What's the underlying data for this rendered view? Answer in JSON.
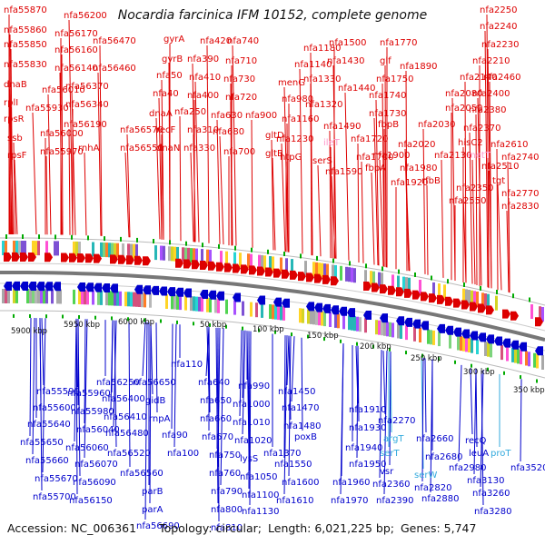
{
  "title": "Nocardia farcinica IFM 10152, complete genome",
  "footer": {
    "accession": "Accession: NC_006361",
    "topology": "Topology: circular;",
    "length": "Length: 6,021,225 bp;",
    "genes": "Genes: 5,747"
  },
  "colors": {
    "forward": "#dd0000",
    "reverse": "#0000cc",
    "reverse_rna": "#33aadd",
    "forward_rna": "#ff99cc",
    "ring": "#888888",
    "tick": "#00aa00"
  },
  "kbp_labels": [
    "5900 kbp",
    "5950 kbp",
    "6000 kbp",
    "50 kbp",
    "100 kbp",
    "150 kbp",
    "200 kbp",
    "250 kbp",
    "300 kbp",
    "350 kbp"
  ],
  "top_labels": [
    "nfa55870",
    "nfa55860",
    "nfa55850",
    "nfa55830",
    "dnaB",
    "rplI",
    "rpsR",
    "ssb",
    "rpsF",
    "nfa56200",
    "nfa56170",
    "nfa56160",
    "nfa56140",
    "nfa56010",
    "nfa55930",
    "nfa56000",
    "nfa55970",
    "nfa56470",
    "nfa56460",
    "nfa56370",
    "nfa56340",
    "nfa56190",
    "rnhA",
    "nfa56570",
    "nfa56550",
    "gyrA",
    "gyrB",
    "nfa50",
    "nfa40",
    "dnaA",
    "recF",
    "dnaN",
    "nfa420",
    "nfa390",
    "nfa410",
    "nfa400",
    "nfa250",
    "nfa310",
    "nfa330",
    "nfa740",
    "nfa710",
    "nfa730",
    "nfa720",
    "nfa630",
    "nfa680",
    "nfa700",
    "nfa900",
    "nfa1180",
    "nfa1140",
    "menG",
    "nfa980",
    "nfa1160",
    "gltD",
    "gltB",
    "nfa1230",
    "htpG",
    "nfa1330",
    "nfa1320",
    "nfa1430",
    "nfa1440",
    "nfa1500",
    "nfa1490",
    "ileT",
    "serS",
    "nfa1590",
    "nfa1770",
    "glf",
    "nfa1750",
    "nfa1740",
    "nfa1730",
    "fbpB",
    "nfa1720",
    "nfa1700",
    "fbpA",
    "nfa1900",
    "nfa1920",
    "nfa1890",
    "nfa2250",
    "nfa2240",
    "nfa2230",
    "nfa2210",
    "nfa2140",
    "nfa2460",
    "nfa2080",
    "nfa2400",
    "nfa2050",
    "nfa2380",
    "nfa2030",
    "nfa2370",
    "nfa2020",
    "hisC2",
    "nfa2610",
    "nfa2130",
    "metT",
    "nfa1980",
    "nfa2510",
    "rfbB",
    "nfa2740",
    "nfa2350",
    "tgt",
    "nfa2550",
    "nfa2770",
    "nfa2830"
  ],
  "bottom_labels": [
    "nfa55590",
    "nfa55600",
    "nfa55640",
    "nfa55650",
    "nfa55660",
    "nfa55670",
    "nfa55700",
    "nfa55960",
    "nfa55980",
    "nfa56040",
    "nfa56060",
    "nfa56070",
    "nfa56090",
    "nfa56150",
    "nfa56250",
    "nfa56400",
    "nfa56410",
    "nfa56480",
    "nfa56520",
    "nfa56560",
    "parB",
    "parA",
    "nfa56690",
    "nfa56650",
    "gidB",
    "rnpA",
    "nfa110",
    "nfa90",
    "nfa100",
    "nfa640",
    "nfa650",
    "nfa660",
    "nfa670",
    "nfa750",
    "nfa760",
    "nfa790",
    "nfa800",
    "nfa810",
    "nfa990",
    "nfa1000",
    "nfa1010",
    "nfa1020",
    "lysS",
    "nfa1050",
    "nfa1100",
    "nfa1130",
    "nfa1450",
    "nfa1470",
    "nfa1480",
    "poxB",
    "nfa1370",
    "nfa1550",
    "nfa1600",
    "nfa1610",
    "nfa1910",
    "nfa1930",
    "nfa1940",
    "nfa1950",
    "nfa1960",
    "nfa1970",
    "nfa2270",
    "argT",
    "serT",
    "vsr",
    "nfa2360",
    "nfa2390",
    "serW",
    "nfa2660",
    "nfa2680",
    "nfa2820",
    "nfa2880",
    "nfa2980",
    "recQ",
    "leuA",
    "proT",
    "nfa3520",
    "nfa3130",
    "nfa3260",
    "nfa3280"
  ]
}
